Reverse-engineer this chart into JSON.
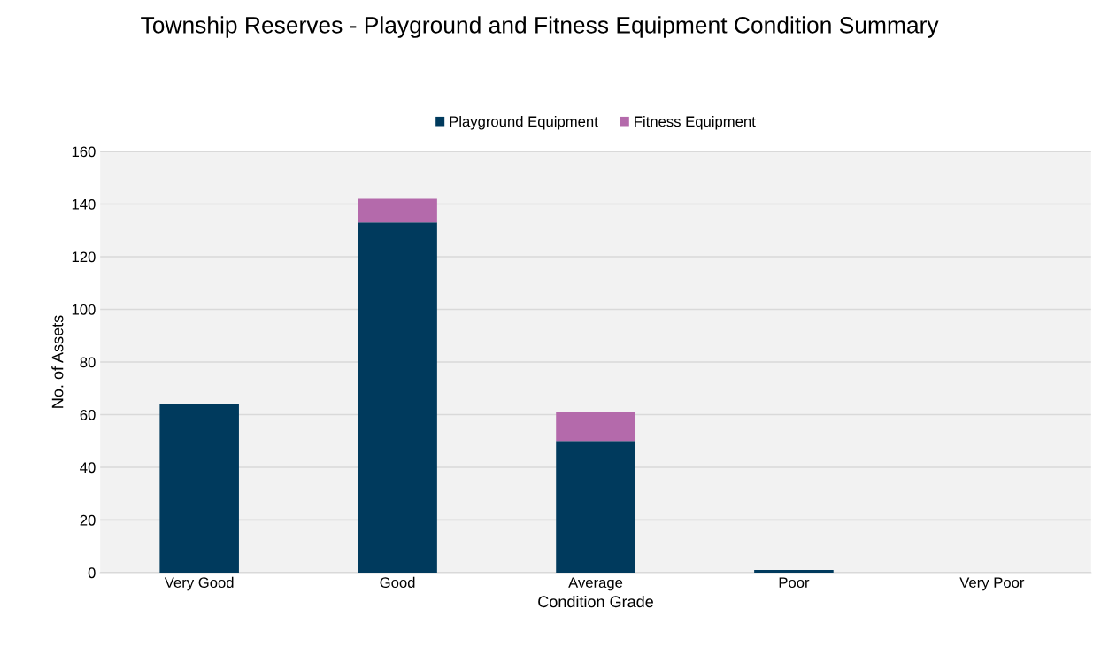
{
  "chart_data": {
    "type": "bar",
    "title": "Township Reserves - Playground and Fitness Equipment Condition Summary",
    "xlabel": "Condition Grade",
    "ylabel": "No. of Assets",
    "categories": [
      "Very Good",
      "Good",
      "Average",
      "Poor",
      "Very Poor"
    ],
    "stacked": true,
    "series": [
      {
        "name": "Playground Equipment",
        "color": "#003a5d",
        "values": [
          64,
          133,
          50,
          1,
          0
        ]
      },
      {
        "name": "Fitness Equipment",
        "color": "#b46aab",
        "values": [
          0,
          9,
          11,
          0,
          0
        ]
      }
    ],
    "ylim": [
      0,
      160
    ],
    "yticks": [
      0,
      20,
      40,
      60,
      80,
      100,
      120,
      140,
      160
    ],
    "grid": "y",
    "legend": "top"
  }
}
